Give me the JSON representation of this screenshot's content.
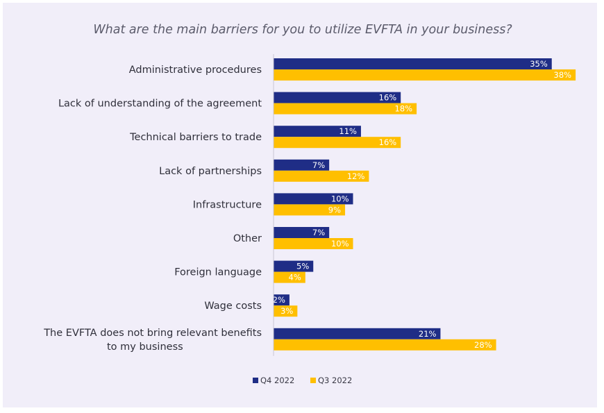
{
  "chart_data": {
    "type": "bar",
    "orientation": "horizontal",
    "title": "What are the main barriers for you to utilize EVFTA in your business?",
    "categories": [
      "Administrative procedures",
      "Lack of understanding of the agreement",
      "Technical barriers to trade",
      "Lack of partnerships",
      "Infrastructure",
      "Other",
      "Foreign language",
      "Wage costs",
      "The EVFTA does not bring relevant benefits to my business"
    ],
    "series": [
      {
        "name": "Q4 2022",
        "color": "#1f2d86",
        "values": [
          35,
          16,
          11,
          7,
          10,
          7,
          5,
          2,
          21
        ]
      },
      {
        "name": "Q3 2022",
        "color": "#ffbf00",
        "values": [
          38,
          18,
          16,
          12,
          9,
          10,
          4,
          3,
          28
        ]
      }
    ],
    "value_suffix": "%",
    "xlim": [
      0,
      40
    ],
    "grid": false,
    "legend_position": "bottom"
  }
}
